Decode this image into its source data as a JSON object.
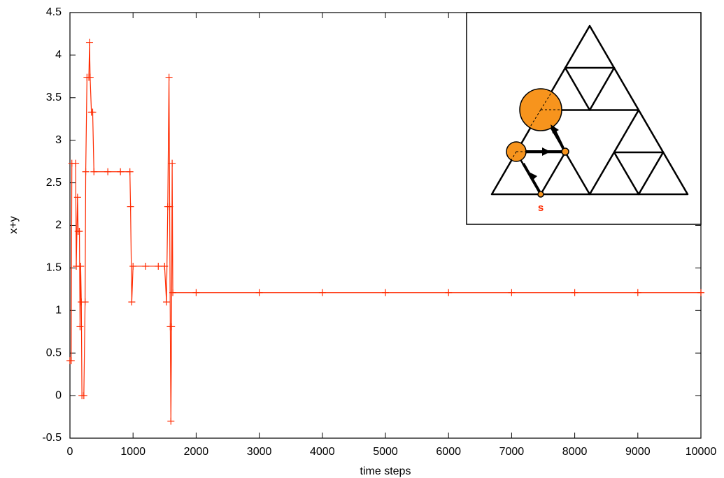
{
  "chart_data": {
    "type": "line",
    "xlabel": "time steps",
    "ylabel": "x+y",
    "color": "#ff2a00",
    "marker": "+",
    "x": [
      0,
      20,
      30,
      90,
      100,
      120,
      130,
      150,
      160,
      170,
      180,
      190,
      220,
      240,
      250,
      270,
      300,
      310,
      320,
      340,
      360,
      380,
      600,
      800,
      950,
      960,
      980,
      1000,
      1200,
      1400,
      1500,
      1530,
      1550,
      1570,
      1580,
      1590,
      1600,
      1610,
      1620,
      1630,
      2000,
      3000,
      4000,
      5000,
      6000,
      7000,
      8000,
      9000,
      10000
    ],
    "values": [
      0.41,
      0.41,
      2.73,
      2.73,
      1.52,
      2.33,
      1.93,
      1.93,
      0.81,
      1.52,
      1.1,
      0,
      0,
      1.1,
      2.63,
      3.74,
      3.74,
      4.15,
      3.74,
      3.33,
      3.33,
      2.63,
      2.63,
      2.63,
      2.63,
      2.22,
      1.1,
      1.52,
      1.52,
      1.52,
      1.52,
      1.1,
      2.22,
      3.74,
      2.22,
      0.81,
      -0.3,
      0.81,
      2.73,
      1.21,
      1.21,
      1.21,
      1.21,
      1.21,
      1.21,
      1.21,
      1.21,
      1.21,
      1.21
    ],
    "xlim": [
      0,
      10000
    ],
    "xticks": [
      0,
      1000,
      2000,
      3000,
      4000,
      5000,
      6000,
      7000,
      8000,
      9000,
      10000
    ],
    "ylim": [
      -0.5,
      4.5
    ],
    "yticks": [
      -0.5,
      0,
      0.5,
      1,
      1.5,
      2,
      2.5,
      3,
      3.5,
      4,
      4.5
    ],
    "grid": false,
    "annotations": [
      "s"
    ]
  }
}
